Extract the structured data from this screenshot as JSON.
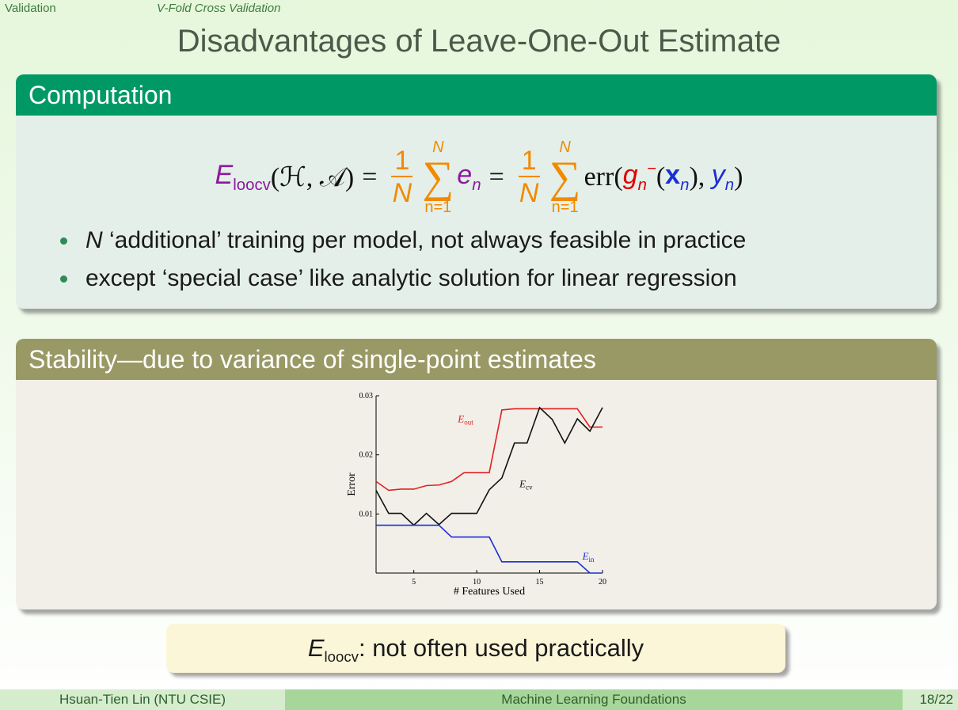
{
  "nav": {
    "section": "Validation",
    "subsection": "V-Fold Cross Validation"
  },
  "title": "Disadvantages of Leave-One-Out Estimate",
  "computation": {
    "heading": "Computation",
    "formula": {
      "lhs_E": "E",
      "lhs_sub": "loocv",
      "lhs_args": "(ℋ, 𝒜)",
      "equals": "=",
      "frac_num": "1",
      "frac_den": "N",
      "sum_top": "N",
      "sum_sigma": "∑",
      "sum_bottom": "n=1",
      "e": "e",
      "e_sub": "n",
      "err": "err(",
      "g": "g",
      "g_sub": "n",
      "g_sup": "−",
      "x_open": "(",
      "x": "x",
      "x_sub": "n",
      "x_close": "),",
      "y": "y",
      "y_sub": "n",
      "close": ")"
    },
    "bullets": [
      {
        "lead": "N",
        "text": " ‘additional’ training per model, not always feasible in practice"
      },
      {
        "lead": "",
        "text": "except ‘special case’ like analytic solution for linear regression"
      }
    ]
  },
  "stability": {
    "heading": "Stability—due to variance of single-point estimates"
  },
  "chart_data": {
    "type": "line",
    "xlabel": "# Features Used",
    "ylabel": "Error",
    "xlim": [
      2,
      20
    ],
    "ylim": [
      0,
      0.03
    ],
    "xticks": [
      "5",
      "10",
      "15",
      "20"
    ],
    "yticks": [
      "0.01",
      "0.02",
      "0.03"
    ],
    "series": [
      {
        "name": "E_out",
        "label_main": "E",
        "label_sub": "out",
        "color": "#e02020",
        "x": [
          2,
          3,
          4,
          5,
          6,
          7,
          8,
          9,
          10,
          11,
          12,
          13,
          14,
          15,
          16,
          17,
          18,
          19,
          20
        ],
        "y": [
          0.0155,
          0.014,
          0.0142,
          0.0142,
          0.0148,
          0.0149,
          0.0155,
          0.017,
          0.017,
          0.017,
          0.0276,
          0.0278,
          0.0278,
          0.0278,
          0.0278,
          0.0278,
          0.0278,
          0.0247,
          0.0247
        ]
      },
      {
        "name": "E_cv",
        "label_main": "E",
        "label_sub": "cv",
        "color": "#111111",
        "x": [
          2,
          3,
          4,
          5,
          6,
          7,
          8,
          9,
          10,
          11,
          12,
          13,
          14,
          15,
          16,
          17,
          18,
          19,
          20
        ],
        "y": [
          0.014,
          0.0101,
          0.0101,
          0.0081,
          0.0101,
          0.0082,
          0.0101,
          0.0101,
          0.0101,
          0.0141,
          0.0161,
          0.022,
          0.022,
          0.028,
          0.026,
          0.022,
          0.0261,
          0.024,
          0.028
        ]
      },
      {
        "name": "E_in",
        "label_main": "E",
        "label_sub": "in",
        "color": "#1a2fd6",
        "x": [
          2,
          3,
          4,
          5,
          6,
          7,
          8,
          9,
          10,
          11,
          12,
          13,
          14,
          15,
          16,
          17,
          18,
          19,
          20
        ],
        "y": [
          0.0081,
          0.0081,
          0.0081,
          0.0081,
          0.0081,
          0.0081,
          0.0061,
          0.0061,
          0.0061,
          0.0061,
          0.0019,
          0.0019,
          0.0019,
          0.0019,
          0.0019,
          0.0019,
          0.0019,
          0.0,
          0.0
        ]
      }
    ],
    "grid": false
  },
  "callout": {
    "E": "E",
    "sub": "loocv",
    "text": ": not often used practically"
  },
  "footer": {
    "author": "Hsuan-Tien Lin  (NTU CSIE)",
    "course": "Machine Learning Foundations",
    "page": "18/22"
  }
}
